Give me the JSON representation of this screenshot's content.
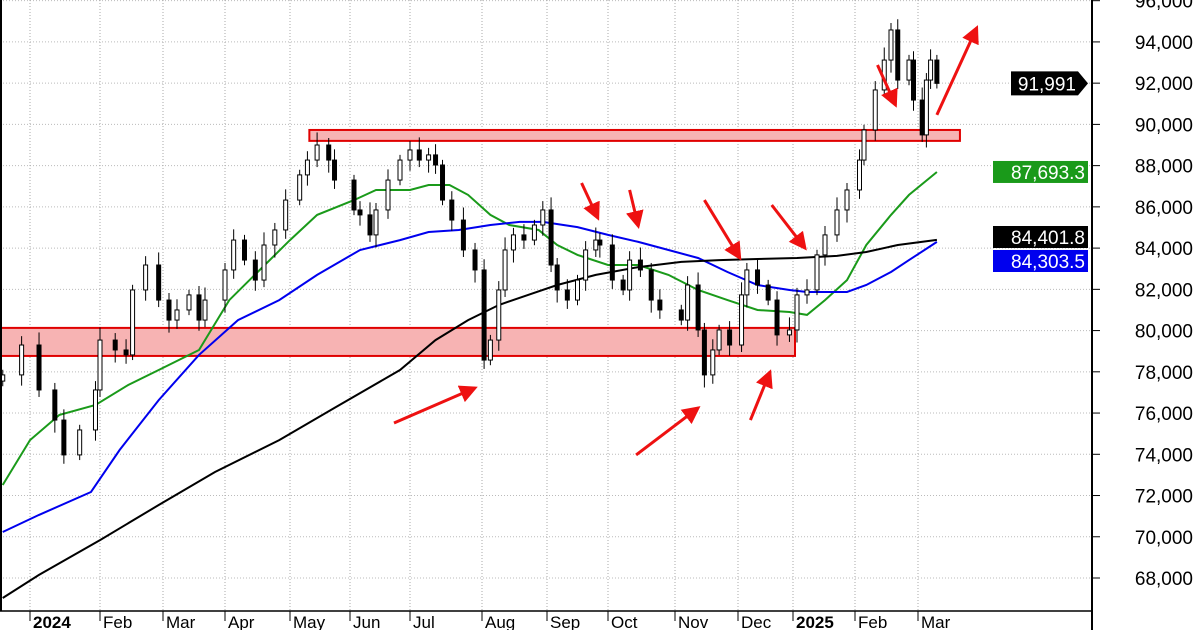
{
  "chart_data": {
    "type": "candlestick",
    "title": "",
    "xlabel": "",
    "ylabel": "",
    "ylim": [
      67000,
      96000
    ],
    "y_ticks": [
      "68,000",
      "70,000",
      "72,000",
      "74,000",
      "76,000",
      "78,000",
      "80,000",
      "82,000",
      "84,000",
      "86,000",
      "88,000",
      "90,000",
      "92,000",
      "94,000",
      "96,000"
    ],
    "y_tick_values": [
      68000,
      70000,
      72000,
      74000,
      76000,
      78000,
      80000,
      82000,
      84000,
      86000,
      88000,
      90000,
      92000,
      94000,
      96000
    ],
    "x_ticks": [
      {
        "label": "2024",
        "date": "2024-01-01",
        "bold": true
      },
      {
        "label": "Feb",
        "date": "2024-02-01"
      },
      {
        "label": "Mar",
        "date": "2024-03-01"
      },
      {
        "label": "Apr",
        "date": "2024-04-01"
      },
      {
        "label": "May",
        "date": "2024-05-01"
      },
      {
        "label": "Jun",
        "date": "2024-06-01"
      },
      {
        "label": "Jul",
        "date": "2024-07-01"
      },
      {
        "label": "Aug",
        "date": "2024-08-01"
      },
      {
        "label": "Sep",
        "date": "2024-09-01"
      },
      {
        "label": "Oct",
        "date": "2024-10-01"
      },
      {
        "label": "Nov",
        "date": "2024-11-01"
      },
      {
        "label": "Dec",
        "date": "2024-12-01"
      },
      {
        "label": "2025",
        "date": "2025-01-01",
        "bold": true
      },
      {
        "label": "Feb",
        "date": "2025-02-01"
      },
      {
        "label": "Mar",
        "date": "2025-03-01"
      }
    ],
    "grid": true,
    "colors": {
      "ma_short": "#1a9a1a",
      "ma_mid": "#0000ee",
      "ma_long": "#000000",
      "zone_fill": "#f7b3b3",
      "zone_border": "#e00000",
      "arrow": "#ee1111",
      "last_price_bg": "#000000"
    },
    "price_closes": [
      [
        "2023-12-19",
        77850
      ],
      [
        "2023-12-28",
        79300
      ],
      [
        "2024-01-05",
        77120
      ],
      [
        "2024-01-12",
        75660
      ],
      [
        "2024-01-16",
        73970
      ],
      [
        "2024-01-23",
        75180
      ],
      [
        "2024-01-30",
        77120
      ],
      [
        "2024-02-01",
        79540
      ],
      [
        "2024-02-08",
        79060
      ],
      [
        "2024-02-13",
        78820
      ],
      [
        "2024-02-16",
        81970
      ],
      [
        "2024-02-22",
        83180
      ],
      [
        "2024-02-28",
        81480
      ],
      [
        "2024-03-04",
        80510
      ],
      [
        "2024-03-08",
        81000
      ],
      [
        "2024-03-14",
        81730
      ],
      [
        "2024-03-19",
        80510
      ],
      [
        "2024-03-22",
        81480
      ],
      [
        "2024-04-01",
        82940
      ],
      [
        "2024-04-05",
        84390
      ],
      [
        "2024-04-10",
        83420
      ],
      [
        "2024-04-15",
        82450
      ],
      [
        "2024-04-19",
        84150
      ],
      [
        "2024-04-24",
        84880
      ],
      [
        "2024-04-29",
        86330
      ],
      [
        "2024-05-06",
        87550
      ],
      [
        "2024-05-10",
        88270
      ],
      [
        "2024-05-15",
        89000
      ],
      [
        "2024-05-21",
        88270
      ],
      [
        "2024-05-24",
        87300
      ],
      [
        "2024-06-03",
        85850
      ],
      [
        "2024-06-06",
        85610
      ],
      [
        "2024-06-11",
        84640
      ],
      [
        "2024-06-14",
        85850
      ],
      [
        "2024-06-20",
        87300
      ],
      [
        "2024-06-26",
        88270
      ],
      [
        "2024-07-01",
        88760
      ],
      [
        "2024-07-05",
        88270
      ],
      [
        "2024-07-09",
        88520
      ],
      [
        "2024-07-12",
        88030
      ],
      [
        "2024-07-15",
        86330
      ],
      [
        "2024-07-19",
        85360
      ],
      [
        "2024-07-24",
        83910
      ],
      [
        "2024-07-29",
        82940
      ],
      [
        "2024-08-02",
        78570
      ],
      [
        "2024-08-05",
        79540
      ],
      [
        "2024-08-09",
        81970
      ],
      [
        "2024-08-12",
        83910
      ],
      [
        "2024-08-16",
        84640
      ],
      [
        "2024-08-21",
        84390
      ],
      [
        "2024-08-26",
        85120
      ],
      [
        "2024-08-30",
        85850
      ],
      [
        "2024-09-03",
        83180
      ],
      [
        "2024-09-06",
        81970
      ],
      [
        "2024-09-11",
        81480
      ],
      [
        "2024-09-16",
        82450
      ],
      [
        "2024-09-20",
        83910
      ],
      [
        "2024-09-25",
        84390
      ],
      [
        "2024-09-27",
        84150
      ],
      [
        "2024-10-03",
        82450
      ],
      [
        "2024-10-08",
        81970
      ],
      [
        "2024-10-11",
        83420
      ],
      [
        "2024-10-16",
        82940
      ],
      [
        "2024-10-21",
        81480
      ],
      [
        "2024-10-25",
        81000
      ],
      [
        "2024-11-04",
        80510
      ],
      [
        "2024-11-07",
        82210
      ],
      [
        "2024-11-12",
        80030
      ],
      [
        "2024-11-15",
        77850
      ],
      [
        "2024-11-19",
        79060
      ],
      [
        "2024-11-22",
        80030
      ],
      [
        "2024-11-27",
        79300
      ],
      [
        "2024-12-03",
        81730
      ],
      [
        "2024-12-06",
        82940
      ],
      [
        "2024-12-12",
        82210
      ],
      [
        "2024-12-18",
        81480
      ],
      [
        "2024-12-23",
        79790
      ],
      [
        "2024-12-30",
        80030
      ],
      [
        "2025-01-03",
        81730
      ],
      [
        "2025-01-08",
        81970
      ],
      [
        "2025-01-13",
        83670
      ],
      [
        "2025-01-17",
        84640
      ],
      [
        "2025-01-23",
        85850
      ],
      [
        "2025-01-28",
        86820
      ],
      [
        "2025-02-03",
        88270
      ],
      [
        "2025-02-05",
        89730
      ],
      [
        "2025-02-10",
        91670
      ],
      [
        "2025-02-14",
        93120
      ],
      [
        "2025-02-17",
        94580
      ],
      [
        "2025-02-20",
        92150
      ],
      [
        "2025-02-25",
        93120
      ],
      [
        "2025-02-27",
        91180
      ],
      [
        "2025-03-03",
        89490
      ],
      [
        "2025-03-05",
        92150
      ],
      [
        "2025-03-07",
        93120
      ],
      [
        "2025-03-10",
        91991
      ]
    ],
    "moving_averages": [
      {
        "key": "ma_short",
        "color": "#1a9a1a",
        "last_value_label": "87,693.3",
        "points": [
          [
            "2023-12-19",
            72510
          ],
          [
            "2024-01-01",
            74690
          ],
          [
            "2024-01-14",
            75910
          ],
          [
            "2024-01-30",
            76390
          ],
          [
            "2024-02-14",
            77360
          ],
          [
            "2024-02-28",
            78090
          ],
          [
            "2024-03-19",
            79060
          ],
          [
            "2024-04-03",
            81480
          ],
          [
            "2024-04-17",
            82940
          ],
          [
            "2024-05-01",
            84390
          ],
          [
            "2024-05-15",
            85610
          ],
          [
            "2024-06-03",
            86330
          ],
          [
            "2024-06-14",
            86820
          ],
          [
            "2024-07-01",
            86820
          ],
          [
            "2024-07-09",
            87060
          ],
          [
            "2024-07-18",
            87060
          ],
          [
            "2024-07-26",
            86580
          ],
          [
            "2024-08-05",
            85610
          ],
          [
            "2024-08-14",
            85120
          ],
          [
            "2024-08-28",
            84880
          ],
          [
            "2024-09-06",
            84150
          ],
          [
            "2024-09-16",
            83670
          ],
          [
            "2024-10-01",
            83180
          ],
          [
            "2024-10-15",
            83180
          ],
          [
            "2024-10-29",
            82700
          ],
          [
            "2024-11-12",
            81970
          ],
          [
            "2024-11-26",
            81480
          ],
          [
            "2024-12-12",
            81000
          ],
          [
            "2024-12-30",
            80900
          ],
          [
            "2025-01-08",
            80760
          ],
          [
            "2025-01-17",
            81480
          ],
          [
            "2025-01-28",
            82450
          ],
          [
            "2025-02-06",
            84150
          ],
          [
            "2025-02-17",
            85610
          ],
          [
            "2025-02-25",
            86580
          ],
          [
            "2025-03-10",
            87690
          ]
        ]
      },
      {
        "key": "ma_mid",
        "color": "#0000ee",
        "last_value_label": "84,303.5",
        "points": [
          [
            "2023-12-19",
            70230
          ],
          [
            "2024-01-05",
            71060
          ],
          [
            "2024-01-28",
            72170
          ],
          [
            "2024-02-10",
            74210
          ],
          [
            "2024-02-28",
            76630
          ],
          [
            "2024-03-19",
            78820
          ],
          [
            "2024-04-07",
            80510
          ],
          [
            "2024-04-26",
            81480
          ],
          [
            "2024-05-15",
            82700
          ],
          [
            "2024-06-06",
            83910
          ],
          [
            "2024-06-26",
            84390
          ],
          [
            "2024-07-09",
            84780
          ],
          [
            "2024-07-22",
            84880
          ],
          [
            "2024-08-05",
            85120
          ],
          [
            "2024-08-19",
            85270
          ],
          [
            "2024-08-30",
            85270
          ],
          [
            "2024-09-16",
            85020
          ],
          [
            "2024-10-01",
            84640
          ],
          [
            "2024-10-15",
            84300
          ],
          [
            "2024-10-29",
            83910
          ],
          [
            "2024-11-12",
            83520
          ],
          [
            "2024-11-26",
            82840
          ],
          [
            "2024-12-12",
            82210
          ],
          [
            "2024-12-30",
            81970
          ],
          [
            "2025-01-08",
            81870
          ],
          [
            "2025-01-17",
            81870
          ],
          [
            "2025-01-28",
            81870
          ],
          [
            "2025-02-06",
            82210
          ],
          [
            "2025-02-17",
            82840
          ],
          [
            "2025-02-25",
            83420
          ],
          [
            "2025-03-10",
            84300
          ]
        ]
      },
      {
        "key": "ma_long",
        "color": "#000000",
        "last_value_label": "84,401.8",
        "points": [
          [
            "2023-12-19",
            67030
          ],
          [
            "2024-01-05",
            68150
          ],
          [
            "2024-02-01",
            69840
          ],
          [
            "2024-02-28",
            71540
          ],
          [
            "2024-03-27",
            73140
          ],
          [
            "2024-04-26",
            74690
          ],
          [
            "2024-05-24",
            76250
          ],
          [
            "2024-06-26",
            78090
          ],
          [
            "2024-07-12",
            79540
          ],
          [
            "2024-07-26",
            80510
          ],
          [
            "2024-08-09",
            81240
          ],
          [
            "2024-08-23",
            81730
          ],
          [
            "2024-09-06",
            82210
          ],
          [
            "2024-09-25",
            82700
          ],
          [
            "2024-10-15",
            83080
          ],
          [
            "2024-11-04",
            83330
          ],
          [
            "2024-11-22",
            83420
          ],
          [
            "2024-12-12",
            83470
          ],
          [
            "2025-01-03",
            83520
          ],
          [
            "2025-01-23",
            83620
          ],
          [
            "2025-02-06",
            83810
          ],
          [
            "2025-02-20",
            84150
          ],
          [
            "2025-03-10",
            84400
          ]
        ]
      }
    ],
    "last_price_label": "91,991",
    "zones": [
      {
        "name": "resistance-zone",
        "from": "2024-05-11",
        "to": "2025-03-21",
        "low": 89200,
        "high": 89730
      },
      {
        "name": "support-zone",
        "from": "2023-12-15",
        "to": "2025-01-02",
        "low": 78770,
        "high": 80130
      }
    ],
    "arrows": [
      {
        "from": [
          "2024-06-23",
          75520
        ],
        "to": [
          "2024-07-29",
          77220
        ]
      },
      {
        "from": [
          "2024-09-18",
          87160
        ],
        "to": [
          "2024-09-26",
          85460
        ]
      },
      {
        "from": [
          "2024-10-11",
          86820
        ],
        "to": [
          "2024-10-15",
          85070
        ]
      },
      {
        "from": [
          "2024-11-15",
          86330
        ],
        "to": [
          "2024-12-02",
          83520
        ]
      },
      {
        "from": [
          "2024-12-20",
          86090
        ],
        "to": [
          "2025-01-07",
          84000
        ]
      },
      {
        "from": [
          "2024-10-14",
          73970
        ],
        "to": [
          "2024-11-12",
          76250
        ]
      },
      {
        "from": [
          "2024-12-08",
          75660
        ],
        "to": [
          "2024-12-19",
          77990
        ]
      },
      {
        "from": [
          "2025-02-11",
          92880
        ],
        "to": [
          "2025-02-19",
          90940
        ]
      },
      {
        "from": [
          "2025-03-10",
          90460
        ],
        "to": [
          "2025-03-29",
          94680
        ]
      }
    ]
  }
}
